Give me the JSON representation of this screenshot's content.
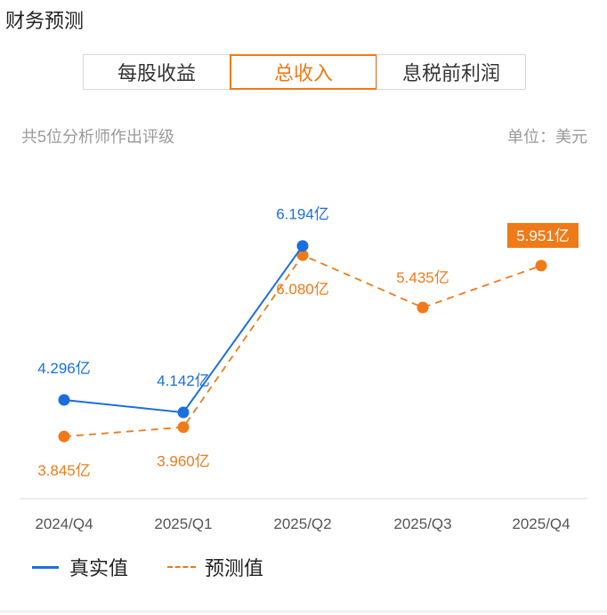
{
  "page_title": "财务预测",
  "tabs": [
    "每股收益",
    "总收入",
    "息税前利润"
  ],
  "active_tab": 1,
  "subtitle_left": "共5位分析师作出评级",
  "subtitle_right": "单位：美元",
  "colors": {
    "actual": "#1a6fde",
    "forecast": "#f07a18",
    "label_bg": "#f07a18"
  },
  "chart_data": {
    "type": "line",
    "categories": [
      "2024/Q4",
      "2025/Q1",
      "2025/Q2",
      "2025/Q3",
      "2025/Q4"
    ],
    "series": [
      {
        "name": "真实值",
        "values": [
          4.296,
          4.142,
          6.194,
          null,
          null
        ],
        "labels": [
          "4.296亿",
          "4.142亿",
          "6.194亿",
          "",
          ""
        ],
        "style": "solid"
      },
      {
        "name": "预测值",
        "values": [
          3.845,
          3.96,
          6.08,
          5.435,
          5.951
        ],
        "labels": [
          "3.845亿",
          "3.960亿",
          "6.080亿",
          "5.435亿",
          "5.951亿"
        ],
        "style": "dashed"
      }
    ],
    "unit": "亿",
    "legend_position": "bottom-left",
    "grid": false
  }
}
